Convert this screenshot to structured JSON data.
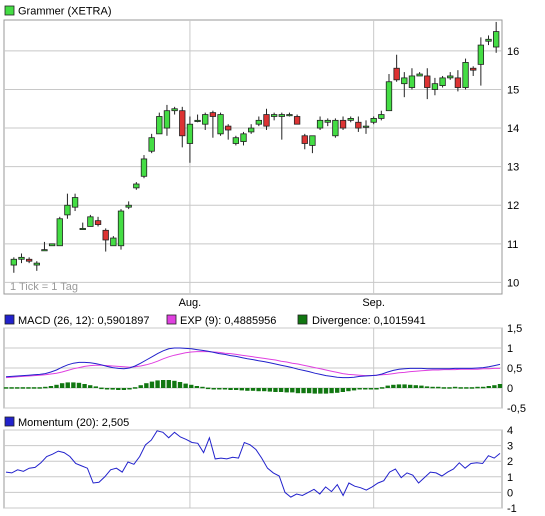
{
  "colors": {
    "up": "#44dd44",
    "down": "#dd3333",
    "grid": "#c8c8c8",
    "macd": "#2222cc",
    "signal": "#e040e0",
    "divergence": "#117711",
    "momentum": "#2222cc"
  },
  "main": {
    "legend": "Grammer (XETRA)",
    "note": "1 Tick = 1 Tag"
  },
  "macd": {
    "legend_macd": "MACD (26, 12): 0,5901897",
    "legend_exp": "EXP (9): 0,4885956",
    "legend_div": "Divergence: 0,1015941"
  },
  "momentum": {
    "legend": "Momentum (20): 2,505"
  },
  "chart_data": [
    {
      "type": "candlestick",
      "title": "Grammer (XETRA)",
      "x_labels": [
        "Aug.",
        "Sep."
      ],
      "x_label_index": [
        23,
        47
      ],
      "y_ticks": [
        10,
        11,
        12,
        13,
        14,
        15,
        16
      ],
      "y_tick_labels": [
        "10",
        "11",
        "12",
        "13",
        "14",
        "15",
        "16"
      ],
      "ylim": [
        9.7,
        16.8
      ],
      "grid": true,
      "candles": [
        [
          10.45,
          10.65,
          10.25,
          10.6
        ],
        [
          10.6,
          10.75,
          10.5,
          10.65
        ],
        [
          10.6,
          10.65,
          10.5,
          10.55
        ],
        [
          10.45,
          10.55,
          10.3,
          10.5
        ],
        [
          10.85,
          11.05,
          10.85,
          10.85
        ],
        [
          10.95,
          11.0,
          10.95,
          11.0
        ],
        [
          10.95,
          11.7,
          10.95,
          11.65
        ],
        [
          11.75,
          12.3,
          11.65,
          12.0
        ],
        [
          11.95,
          12.3,
          11.85,
          12.2
        ],
        [
          11.4,
          11.55,
          11.4,
          11.4
        ],
        [
          11.45,
          11.75,
          11.45,
          11.7
        ],
        [
          11.6,
          11.7,
          11.45,
          11.5
        ],
        [
          11.35,
          11.4,
          10.8,
          11.1
        ],
        [
          10.95,
          11.2,
          10.95,
          11.15
        ],
        [
          10.95,
          11.9,
          10.85,
          11.85
        ],
        [
          11.95,
          12.1,
          11.9,
          12.0
        ],
        [
          12.45,
          12.6,
          12.4,
          12.55
        ],
        [
          12.75,
          13.3,
          12.7,
          13.2
        ],
        [
          13.4,
          13.85,
          13.35,
          13.75
        ],
        [
          13.85,
          14.4,
          13.85,
          14.3
        ],
        [
          14.0,
          14.6,
          13.8,
          14.45
        ],
        [
          14.45,
          14.55,
          14.35,
          14.5
        ],
        [
          14.45,
          14.55,
          13.5,
          13.8
        ],
        [
          13.6,
          14.3,
          13.1,
          14.1
        ],
        [
          14.2,
          14.35,
          14.15,
          14.2
        ],
        [
          14.1,
          14.4,
          13.95,
          14.35
        ],
        [
          14.4,
          14.45,
          13.75,
          14.3
        ],
        [
          13.85,
          14.4,
          13.8,
          14.35
        ],
        [
          14.05,
          14.1,
          13.7,
          13.95
        ],
        [
          13.6,
          13.8,
          13.55,
          13.75
        ],
        [
          13.65,
          13.9,
          13.55,
          13.85
        ],
        [
          13.9,
          14.1,
          13.85,
          14.0
        ],
        [
          14.1,
          14.3,
          14.05,
          14.2
        ],
        [
          14.35,
          14.5,
          13.95,
          14.05
        ],
        [
          14.3,
          14.4,
          14.2,
          14.35
        ],
        [
          14.3,
          14.4,
          13.7,
          14.35
        ],
        [
          14.35,
          14.4,
          14.3,
          14.35
        ],
        [
          14.3,
          14.35,
          14.1,
          14.1
        ],
        [
          13.8,
          13.85,
          13.45,
          13.6
        ],
        [
          13.55,
          13.8,
          13.35,
          13.8
        ],
        [
          14.0,
          14.3,
          13.95,
          14.2
        ],
        [
          14.15,
          14.25,
          14.05,
          14.2
        ],
        [
          13.8,
          14.25,
          13.75,
          14.2
        ],
        [
          14.2,
          14.3,
          13.95,
          14.0
        ],
        [
          14.2,
          14.3,
          14.15,
          14.25
        ],
        [
          14.15,
          14.3,
          13.9,
          14.0
        ],
        [
          14.05,
          14.2,
          13.85,
          14.05
        ],
        [
          14.15,
          14.3,
          14.1,
          14.25
        ],
        [
          14.25,
          14.45,
          14.2,
          14.35
        ],
        [
          14.45,
          15.4,
          14.45,
          15.2
        ],
        [
          15.55,
          15.9,
          15.2,
          15.25
        ],
        [
          15.15,
          15.45,
          14.8,
          15.3
        ],
        [
          15.05,
          15.55,
          15.0,
          15.35
        ],
        [
          15.35,
          15.45,
          15.35,
          15.4
        ],
        [
          15.35,
          15.55,
          14.75,
          15.05
        ],
        [
          15.0,
          15.3,
          14.85,
          15.15
        ],
        [
          15.1,
          15.35,
          15.05,
          15.3
        ],
        [
          15.3,
          15.45,
          15.25,
          15.35
        ],
        [
          15.3,
          15.5,
          14.95,
          15.05
        ],
        [
          15.05,
          15.8,
          15.0,
          15.7
        ],
        [
          15.55,
          15.6,
          15.35,
          15.5
        ],
        [
          15.65,
          16.35,
          15.1,
          16.15
        ],
        [
          16.25,
          16.4,
          16.15,
          16.3
        ],
        [
          16.1,
          16.75,
          15.95,
          16.5
        ]
      ]
    },
    {
      "type": "line",
      "title": "MACD",
      "y_ticks": [
        -0.5,
        0,
        0.5,
        1,
        1.5
      ],
      "y_tick_labels": [
        "-0,5",
        "0",
        "0,5",
        "1",
        "1,5"
      ],
      "ylim": [
        -0.5,
        1.5
      ],
      "grid": true,
      "series": [
        {
          "name": "MACD (26, 12)",
          "values": [
            0.28,
            0.29,
            0.3,
            0.31,
            0.32,
            0.33,
            0.34,
            0.36,
            0.4,
            0.45,
            0.52,
            0.58,
            0.62,
            0.64,
            0.64,
            0.63,
            0.61,
            0.58,
            0.54,
            0.51,
            0.49,
            0.48,
            0.5,
            0.55,
            0.62,
            0.7,
            0.78,
            0.86,
            0.93,
            0.98,
            1.0,
            1.0,
            0.99,
            0.98,
            0.96,
            0.94,
            0.92,
            0.89,
            0.86,
            0.84,
            0.81,
            0.79,
            0.76,
            0.73,
            0.71,
            0.68,
            0.66,
            0.63,
            0.6,
            0.57,
            0.54,
            0.51,
            0.47,
            0.44,
            0.41,
            0.37,
            0.34,
            0.31,
            0.29,
            0.27,
            0.26,
            0.26,
            0.27,
            0.29,
            0.3,
            0.31,
            0.32,
            0.35,
            0.4,
            0.44,
            0.47,
            0.48,
            0.49,
            0.49,
            0.49,
            0.48,
            0.48,
            0.48,
            0.48,
            0.48,
            0.49,
            0.49,
            0.49,
            0.49,
            0.5,
            0.51,
            0.53,
            0.56,
            0.59
          ]
        },
        {
          "name": "EXP (9)",
          "values": [
            0.26,
            0.27,
            0.28,
            0.29,
            0.3,
            0.31,
            0.32,
            0.33,
            0.35,
            0.37,
            0.4,
            0.44,
            0.48,
            0.51,
            0.54,
            0.56,
            0.57,
            0.57,
            0.56,
            0.55,
            0.54,
            0.53,
            0.52,
            0.53,
            0.55,
            0.58,
            0.62,
            0.67,
            0.73,
            0.78,
            0.82,
            0.85,
            0.88,
            0.9,
            0.91,
            0.91,
            0.91,
            0.9,
            0.89,
            0.87,
            0.86,
            0.84,
            0.82,
            0.8,
            0.78,
            0.76,
            0.74,
            0.72,
            0.7,
            0.67,
            0.65,
            0.62,
            0.6,
            0.57,
            0.54,
            0.51,
            0.48,
            0.45,
            0.42,
            0.39,
            0.36,
            0.34,
            0.33,
            0.32,
            0.31,
            0.31,
            0.32,
            0.33,
            0.34,
            0.36,
            0.38,
            0.39,
            0.41,
            0.42,
            0.43,
            0.44,
            0.45,
            0.45,
            0.46,
            0.46,
            0.46,
            0.47,
            0.47,
            0.47,
            0.47,
            0.48,
            0.48,
            0.49,
            0.49
          ]
        },
        {
          "name": "Divergence",
          "values": [
            0.02,
            0.02,
            0.02,
            0.02,
            0.02,
            0.02,
            0.02,
            0.03,
            0.05,
            0.08,
            0.12,
            0.14,
            0.14,
            0.13,
            0.1,
            0.07,
            0.04,
            0.01,
            -0.02,
            -0.04,
            -0.05,
            -0.05,
            -0.02,
            0.02,
            0.07,
            0.12,
            0.16,
            0.19,
            0.2,
            0.2,
            0.18,
            0.15,
            0.11,
            0.08,
            0.05,
            0.03,
            0.01,
            -0.01,
            -0.03,
            -0.03,
            -0.05,
            -0.05,
            -0.06,
            -0.07,
            -0.07,
            -0.08,
            -0.08,
            -0.09,
            -0.1,
            -0.1,
            -0.11,
            -0.11,
            -0.13,
            -0.13,
            -0.13,
            -0.14,
            -0.14,
            -0.14,
            -0.13,
            -0.12,
            -0.1,
            -0.08,
            -0.06,
            -0.03,
            -0.01,
            0.0,
            0.0,
            0.02,
            0.06,
            0.08,
            0.09,
            0.09,
            0.08,
            0.07,
            0.06,
            0.04,
            0.03,
            0.03,
            0.02,
            0.02,
            0.03,
            0.02,
            0.02,
            0.02,
            0.03,
            0.03,
            0.05,
            0.07,
            0.1
          ]
        }
      ]
    },
    {
      "type": "line",
      "title": "Momentum (20)",
      "y_ticks": [
        -1,
        0,
        1,
        2,
        3,
        4
      ],
      "y_tick_labels": [
        "-1",
        "0",
        "1",
        "2",
        "3",
        "4"
      ],
      "ylim": [
        -1,
        4
      ],
      "grid": true,
      "series": [
        {
          "name": "Momentum (20)",
          "values": [
            1.3,
            1.25,
            1.45,
            1.35,
            1.55,
            1.6,
            1.9,
            2.3,
            2.45,
            2.65,
            2.55,
            2.3,
            1.85,
            1.7,
            1.55,
            0.6,
            0.65,
            1.0,
            1.45,
            1.55,
            1.3,
            1.95,
            1.8,
            2.3,
            3.05,
            3.35,
            3.95,
            3.85,
            3.5,
            3.85,
            3.55,
            3.4,
            3.2,
            3.15,
            2.55,
            3.5,
            2.15,
            2.2,
            2.15,
            2.25,
            2.2,
            3.2,
            3.05,
            2.75,
            2.2,
            1.55,
            1.25,
            1.05,
            0.0,
            -0.3,
            -0.1,
            -0.2,
            0.0,
            0.2,
            -0.1,
            0.35,
            0.05,
            0.5,
            -0.2,
            0.6,
            0.4,
            0.3,
            0.15,
            0.35,
            0.6,
            0.75,
            1.3,
            1.5,
            0.95,
            1.25,
            1.1,
            0.6,
            0.95,
            1.3,
            1.25,
            1.05,
            1.3,
            1.5,
            1.9,
            1.55,
            1.85,
            1.9,
            1.85,
            2.35,
            2.2,
            2.5
          ]
        }
      ]
    }
  ]
}
